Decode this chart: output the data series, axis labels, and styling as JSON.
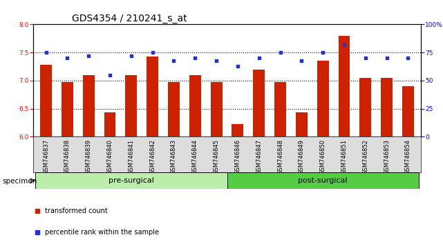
{
  "title": "GDS4354 / 210241_s_at",
  "samples": [
    "GSM746837",
    "GSM746838",
    "GSM746839",
    "GSM746840",
    "GSM746841",
    "GSM746842",
    "GSM746843",
    "GSM746844",
    "GSM746845",
    "GSM746846",
    "GSM746847",
    "GSM746848",
    "GSM746849",
    "GSM746850",
    "GSM746851",
    "GSM746852",
    "GSM746853",
    "GSM746854"
  ],
  "bar_values": [
    7.28,
    6.97,
    7.1,
    6.43,
    7.1,
    7.43,
    6.97,
    7.1,
    6.97,
    6.23,
    7.2,
    6.97,
    6.43,
    7.35,
    7.8,
    7.05,
    7.05,
    6.9
  ],
  "percentile_values": [
    75,
    70,
    72,
    55,
    72,
    75,
    68,
    70,
    68,
    63,
    70,
    75,
    68,
    75,
    82,
    70,
    70,
    70
  ],
  "ylim_left": [
    6.0,
    8.0
  ],
  "ylim_right": [
    0,
    100
  ],
  "yticks_left": [
    6.0,
    6.5,
    7.0,
    7.5,
    8.0
  ],
  "yticks_right": [
    0,
    25,
    50,
    75,
    100
  ],
  "ytick_labels_right": [
    "0",
    "25",
    "50",
    "75",
    "100%"
  ],
  "hlines": [
    6.5,
    7.0,
    7.5
  ],
  "bar_color": "#cc2200",
  "marker_color": "#2233cc",
  "bar_bottom": 6.0,
  "groups": [
    {
      "label": "pre-surgical",
      "start": 0,
      "end": 9,
      "color": "#bbeeaa"
    },
    {
      "label": "post-surgical",
      "start": 9,
      "end": 18,
      "color": "#55cc44"
    }
  ],
  "specimen_label": "specimen",
  "legend_items": [
    {
      "label": "transformed count",
      "color": "#cc2200"
    },
    {
      "label": "percentile rank within the sample",
      "color": "#2233cc"
    }
  ],
  "title_fontsize": 10,
  "tick_fontsize": 6.5,
  "label_fontsize": 7.5,
  "group_fontsize": 8,
  "legend_fontsize": 7
}
